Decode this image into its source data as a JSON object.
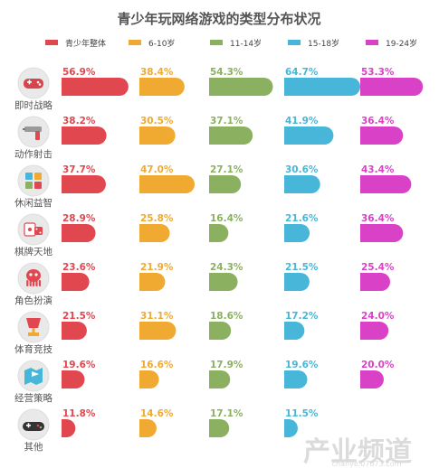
{
  "chart_data": {
    "type": "bar",
    "title": "青少年玩网络游戏的类型分布状况",
    "categories": [
      "即时战略",
      "动作射击",
      "休闲益智",
      "棋牌天地",
      "角色扮演",
      "体育竞技",
      "经营策略",
      "其他"
    ],
    "category_icons": [
      "gamepad-icon",
      "gun-icon",
      "puzzle-icon",
      "dice-cards-icon",
      "octopus-icon",
      "trophy-icon",
      "map-flag-icon",
      "joystick-icon"
    ],
    "series": [
      {
        "name": "青少年整体",
        "color": "#e0474f",
        "values": [
          56.9,
          38.2,
          37.7,
          28.9,
          23.6,
          21.5,
          19.6,
          11.8
        ],
        "labels": [
          "56.9%",
          "38.2%",
          "37.7%",
          "28.9%",
          "23.6%",
          "21.5%",
          "19.6%",
          "11.8%"
        ]
      },
      {
        "name": "6-10岁",
        "color": "#f0a931",
        "values": [
          38.4,
          30.5,
          47.0,
          25.8,
          21.9,
          31.1,
          16.6,
          14.6
        ],
        "labels": [
          "38.4%",
          "30.5%",
          "47.0%",
          "25.8%",
          "21.9%",
          "31.1%",
          "16.6%",
          "14.6%"
        ]
      },
      {
        "name": "11-14岁",
        "color": "#8ab060",
        "values": [
          54.3,
          37.1,
          27.1,
          16.4,
          24.3,
          18.6,
          17.9,
          17.1
        ],
        "labels": [
          "54.3%",
          "37.1%",
          "27.1%",
          "16.4%",
          "24.3%",
          "18.6%",
          "17.9%",
          "17.1%"
        ]
      },
      {
        "name": "15-18岁",
        "color": "#48b6d8",
        "values": [
          64.7,
          41.9,
          30.6,
          21.6,
          21.5,
          17.2,
          19.6,
          11.5
        ],
        "labels": [
          "64.7%",
          "41.9%",
          "30.6%",
          "21.6%",
          "21.5%",
          "17.2%",
          "19.6%",
          "11.5%"
        ]
      },
      {
        "name": "19-24岁",
        "color": "#d942c6",
        "values": [
          53.3,
          36.4,
          43.4,
          36.4,
          25.4,
          24.0,
          20.0,
          null
        ],
        "labels": [
          "53.3%",
          "36.4%",
          "43.4%",
          "36.4%",
          "25.4%",
          "24.0%",
          "20.0%",
          null
        ]
      }
    ],
    "legend_position": "top",
    "grid": false
  },
  "watermark": {
    "main": "产业频道",
    "sub": "chanye.07073.com"
  }
}
